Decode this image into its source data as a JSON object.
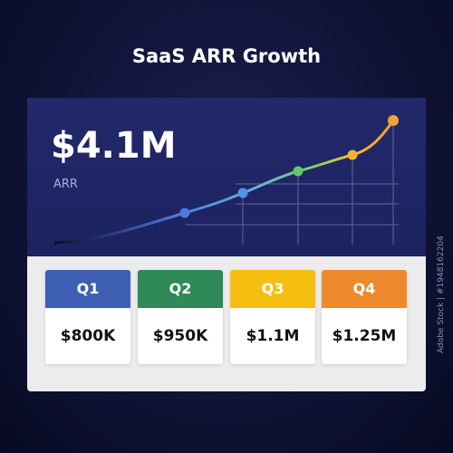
{
  "header": {
    "title": "SaaS ARR Growth"
  },
  "metric": {
    "value": "$4.1M",
    "label": "ARR"
  },
  "quarters": [
    {
      "label": "Q1",
      "value": "$800K",
      "color": "#3f5fb5"
    },
    {
      "label": "Q2",
      "value": "$950K",
      "color": "#2f8a57"
    },
    {
      "label": "Q3",
      "value": "$1.1M",
      "color": "#f5bf12"
    },
    {
      "label": "Q4",
      "value": "$1.25M",
      "color": "#ee8a2c"
    }
  ],
  "side_note": "Adobe Stock | #1948162204"
}
